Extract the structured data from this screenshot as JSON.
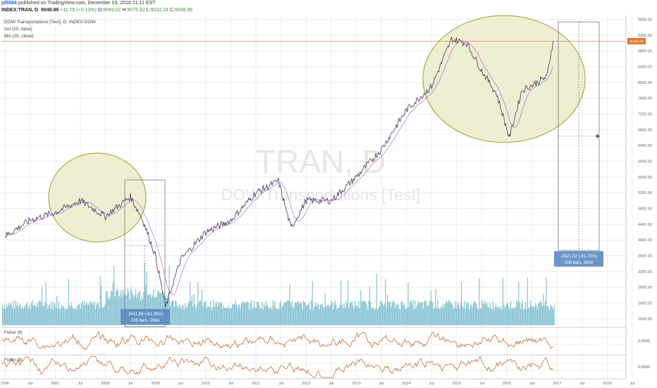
{
  "header": {
    "author": "jd5584",
    "published": " published on TradingView.com, December 03, 2016 21:11 EST",
    "symbol": "INDEX:TRAN, D",
    "last": "9048.96",
    "change": "+11.76 (+0.13%)",
    "open_label": "O:",
    "open": "9049.02",
    "high_label": "H:",
    "high": "9075.82",
    "low_label": "L:",
    "low": "9032.24",
    "close_label": "C:",
    "close": "9048.96"
  },
  "legend": {
    "title": "DOW Transportations [Test], D, INDEX-DOW",
    "vol": "Vol (20, false)",
    "ma": "MA (20, close)"
  },
  "watermark": {
    "big": "TRAN, D",
    "small": "DOW Transportations [Test]"
  },
  "price_tag": "9048.96",
  "measure1": {
    "line1": "-3411.95 (-61.30%)",
    "line2": "205 bars, 299d"
  },
  "measure2": {
    "line1": "-5921.32 (-61.70%)",
    "line2": "208 bars, 290d"
  },
  "fisher1": {
    "label": "Fisher (9)",
    "zero": "0.0000"
  },
  "fisher2": {
    "label": "Fisher (9)",
    "zero": "0.0000"
  },
  "colors": {
    "price": "#3a3a5a",
    "ma": "#b040c0",
    "volume": "#6ab4c8",
    "ellipse_fill": "#e8e8c4",
    "ellipse_stroke": "#9aa02a",
    "fisher": "#b8602a",
    "tag": "#e36e2e",
    "measure": "#5b8bc0",
    "grid": "#eeeeee"
  },
  "chart_data": {
    "type": "line",
    "title": "DOW Transportations [Test], D, INDEX-DOW",
    "x": [
      2006.0,
      2006.5,
      2007.0,
      2007.5,
      2008.0,
      2008.5,
      2008.75,
      2009.0,
      2009.2,
      2009.5,
      2010.0,
      2010.5,
      2011.0,
      2011.45,
      2011.7,
      2012.0,
      2012.5,
      2013.0,
      2013.5,
      2014.0,
      2014.5,
      2014.9,
      2015.2,
      2015.5,
      2015.8,
      2016.05,
      2016.3,
      2016.6,
      2016.8,
      2016.92
    ],
    "series": [
      {
        "values": [
          4100,
          4500,
          4700,
          5000,
          4600,
          5100,
          4500,
          3600,
          2300,
          3500,
          4200,
          4500,
          5200,
          5500,
          4300,
          5000,
          5000,
          5600,
          6300,
          7300,
          7900,
          9100,
          9000,
          8300,
          7700,
          6600,
          7800,
          8000,
          8150,
          9050
        ]
      }
    ],
    "ylim": [
      1800,
      9700
    ],
    "y_ticks": [
      "9600.00",
      "9200.00",
      "8800.00",
      "8400.00",
      "8000.00",
      "7600.00",
      "7200.00",
      "6800.00",
      "6400.00",
      "6000.00",
      "5600.00",
      "5200.00",
      "4800.00",
      "4400.00",
      "4000.00",
      "3600.00",
      "3200.00",
      "2800.00",
      "2400.00",
      "2000.00"
    ],
    "x_ticks": [
      "2006",
      "Jul",
      "2007",
      "Jul",
      "2008",
      "Jul",
      "2009",
      "Jul",
      "2010",
      "Jul",
      "2011",
      "Jul",
      "2012",
      "Jul",
      "2013",
      "Jul",
      "2014",
      "Jul",
      "2015",
      "Jul",
      "2016",
      "Jul",
      "2017",
      "Jul",
      "2018",
      "Jul"
    ],
    "grid": true
  }
}
